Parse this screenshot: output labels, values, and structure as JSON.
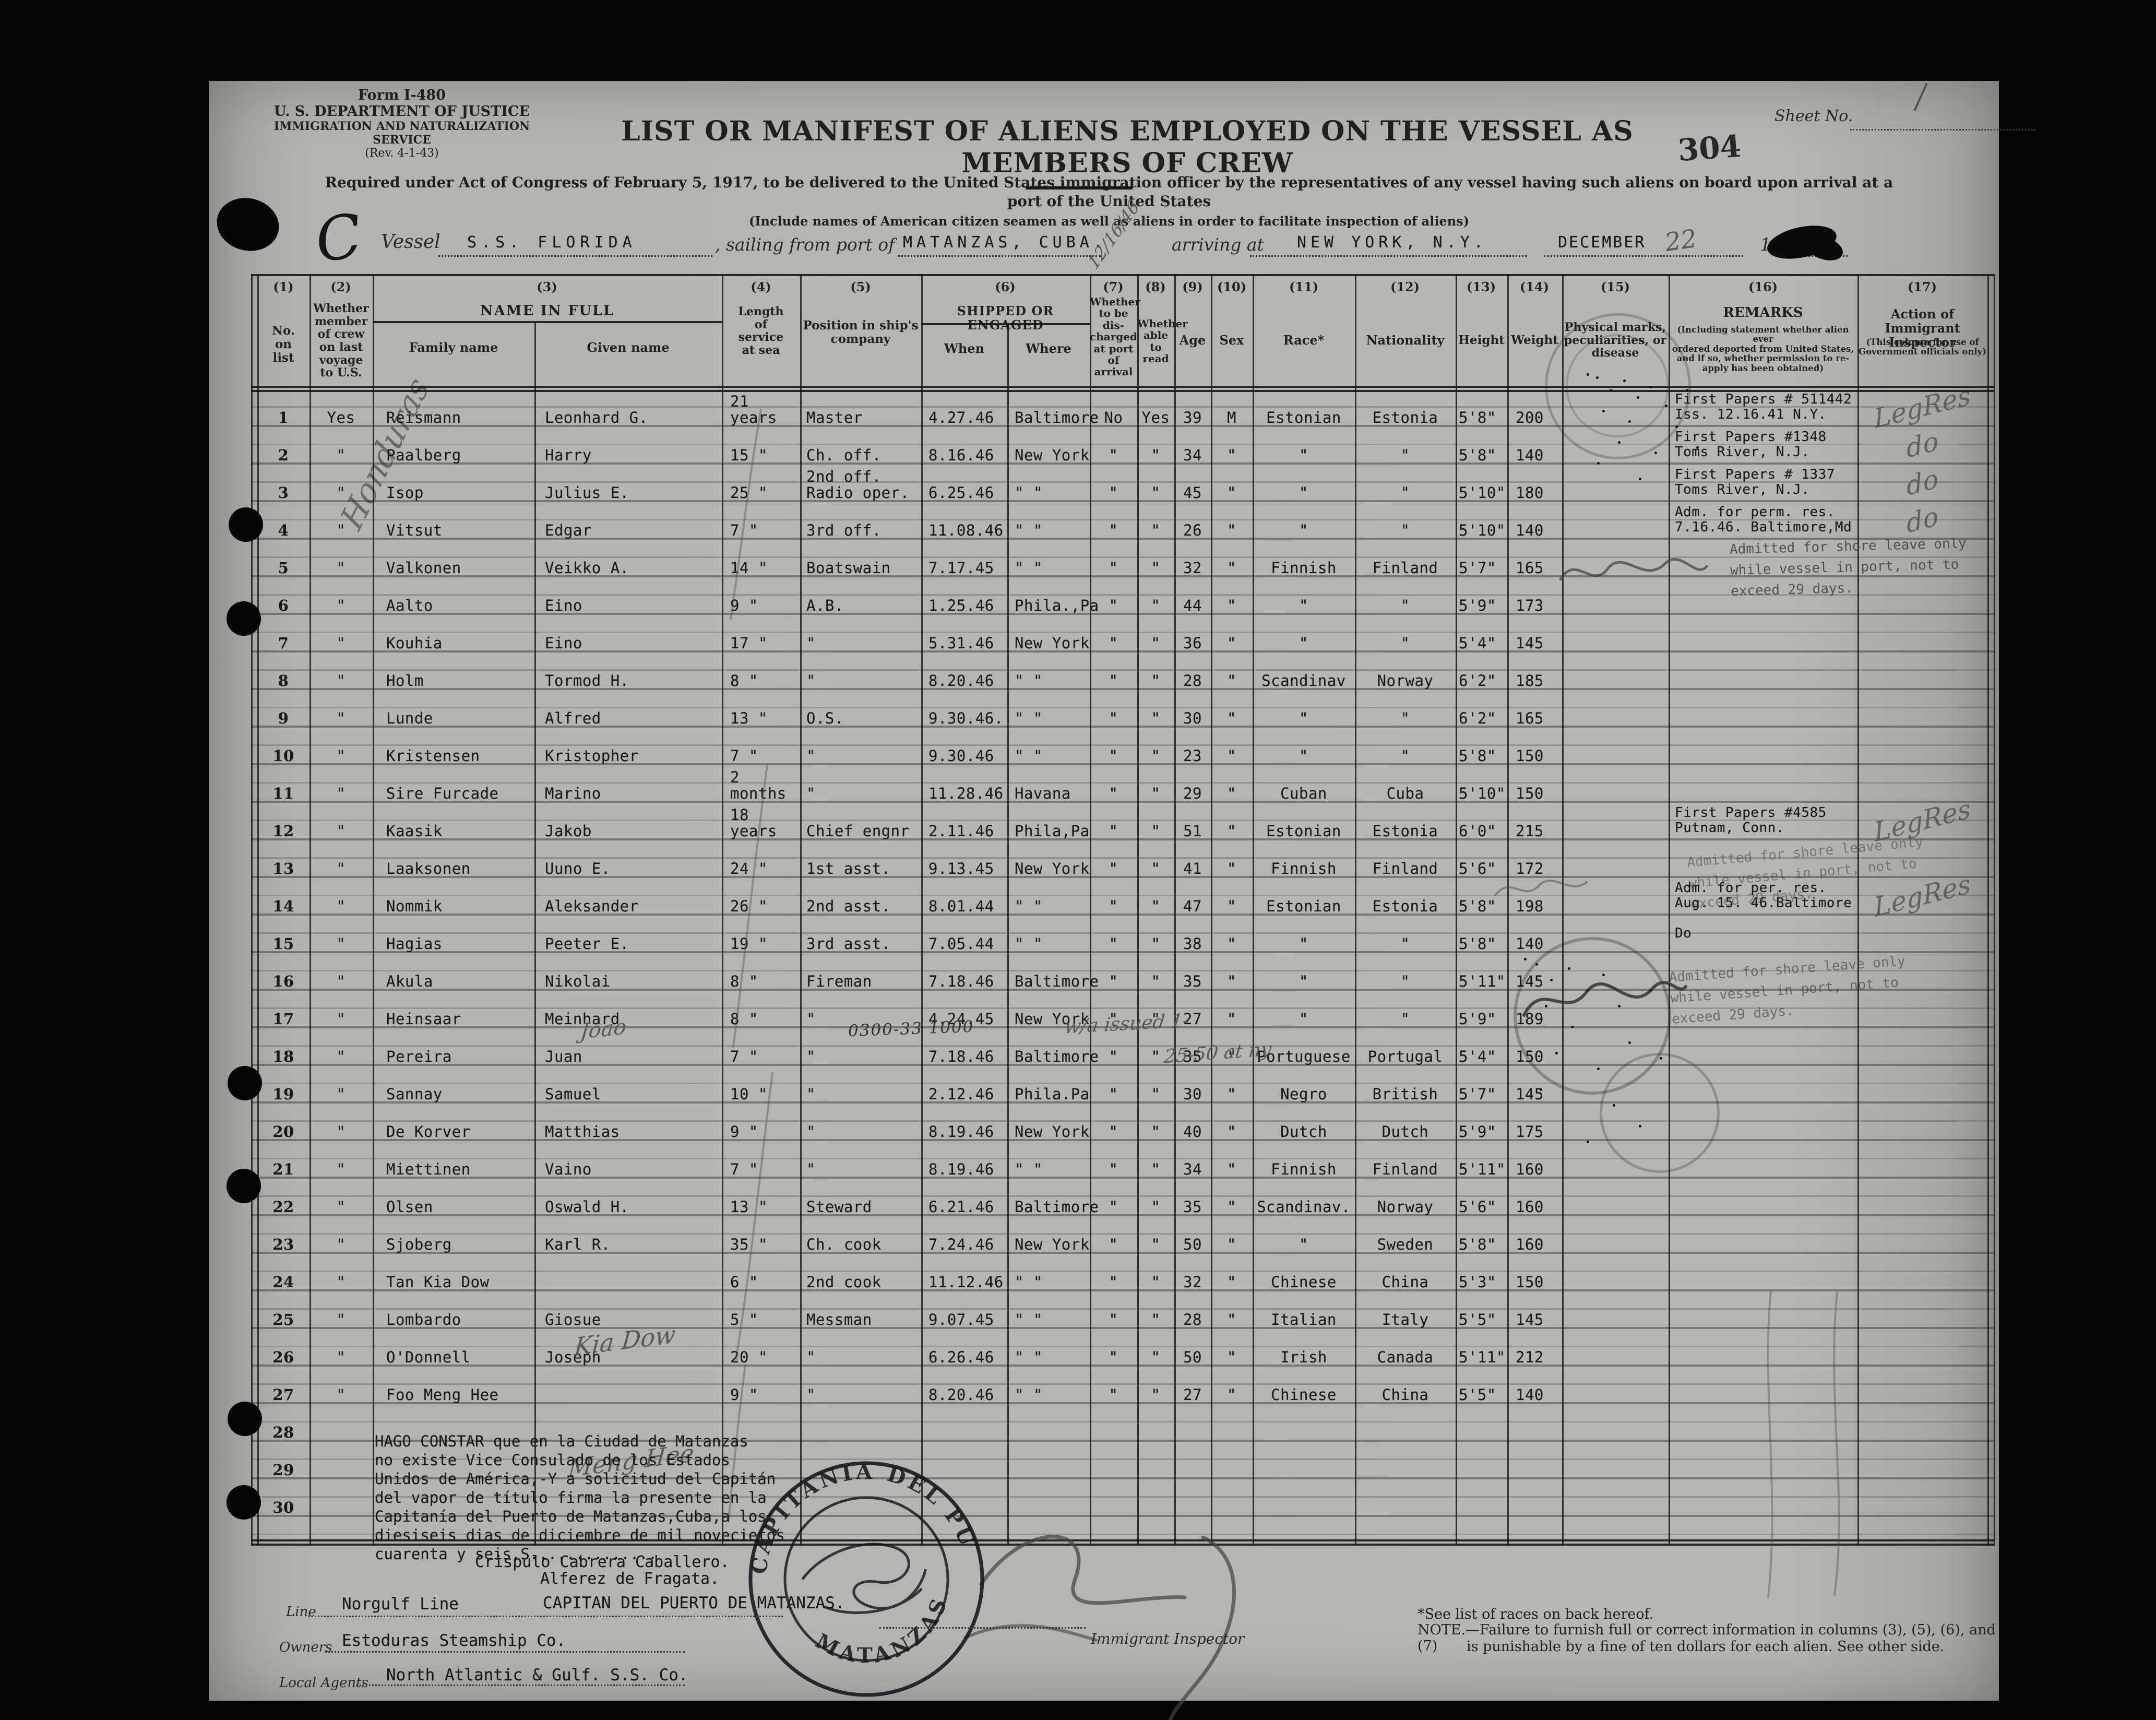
{
  "header": {
    "form_number": "Form I-480",
    "agency_line1": "U. S. DEPARTMENT OF JUSTICE",
    "agency_line2": "IMMIGRATION AND NATURALIZATION SERVICE",
    "revision": "(Rev. 4-1-43)",
    "title": "LIST OR MANIFEST OF ALIENS EMPLOYED ON THE VESSEL AS MEMBERS OF CREW",
    "sheet_no_label": "Sheet No.",
    "page_stamp": "304",
    "subtitle_line1": "Required under Act of Congress of February 5, 1917, to be delivered to the United States immigration officer by the representatives of any vessel having such aliens on board upon arrival at a",
    "subtitle_line2": "port of the United States",
    "include_note": "(Include names of American citizen seamen as well as aliens in order to facilitate inspection of aliens)",
    "vessel_label": "Vessel",
    "vessel_name": "S.S. FLORIDA",
    "sailing_label": ", sailing from port of",
    "sailing_port": "MATANZAS, CUBA.",
    "arriving_label": "arriving at",
    "arrival_port": "NEW YORK, N.Y.",
    "arrival_month": "DECEMBER",
    "year_prefix": "19"
  },
  "handwriting": {
    "classification_letter": "C",
    "margin_note": "Honduras",
    "sailing_date": "12/16/46",
    "arrival_day": "22",
    "row18_number": "0300-33 1000",
    "row18_note1": "w/a issued 1-",
    "row18_note2": "25-50 at ny",
    "joao": "Joao",
    "kia_dow": "Kia Dow",
    "meng_hee": "Meng Hee"
  },
  "stamps": {
    "shore_leave": "Admitted for shore leave only\nwhile vessel in port, not to\nexceed 29 days.",
    "port_stamp_top": "CAPITANIA DEL PUERTO",
    "port_stamp_bottom": "MATANZAS"
  },
  "table": {
    "column_numbers": [
      "(1)",
      "(2)",
      "(3)",
      "(4)",
      "(5)",
      "(6)",
      "(7)",
      "(8)",
      "(9)",
      "(10)",
      "(11)",
      "(12)",
      "(13)",
      "(14)",
      "(15)",
      "(16)",
      "(17)"
    ],
    "headers": {
      "no": "No.\non\nlist",
      "member": "Whether\nmember\nof crew\non last\nvoyage\nto U.S.",
      "name": "NAME IN FULL",
      "family": "Family name",
      "given": "Given name",
      "service": "Length\nof\nservice\nat sea",
      "position": "Position in ship's\ncompany",
      "shipped": "SHIPPED OR ENGAGED",
      "when": "When",
      "where": "Where",
      "discharged": "Whether\nto be\ndis-\ncharged\nat port of\narrival",
      "read": "Whether\nable to\nread",
      "age": "Age",
      "sex": "Sex",
      "race": "Race*",
      "nationality": "Nationality",
      "height": "Height",
      "weight": "Weight",
      "marks": "Physical marks,\npeculiarities, or\ndisease",
      "remarks": "REMARKS",
      "remarks_sub": "(Including statement whether alien ever\nordered deported from United States,\nand if so, whether permission to re-\napply has been obtained)",
      "action": "Action of Immigrant\nInspector",
      "action_sub": "(This column for use of\nGovernment officials only)"
    },
    "rows": [
      {
        "no": "1",
        "member": "Yes",
        "family": "Reismann",
        "given": "Leonhard G.",
        "service": "21 years",
        "position": "Master",
        "when": "4.27.46",
        "where": "Baltimore",
        "discharged": "No",
        "read": "Yes",
        "age": "39",
        "sex": "M",
        "race": "Estonian",
        "nationality": "Estonia",
        "height": "5'8\"",
        "weight": "200",
        "remarks": "First Papers # 511442\nIss. 12.16.41 N.Y.",
        "action": "LegRes"
      },
      {
        "no": "2",
        "member": "\"",
        "family": "Paalberg",
        "given": "Harry",
        "service": "15  \"",
        "position": "Ch. off.",
        "when": "8.16.46",
        "where": "New York",
        "discharged": "\"",
        "read": "\"",
        "age": "34",
        "sex": "\"",
        "race": "\"",
        "nationality": "\"",
        "height": "5'8\"",
        "weight": "140",
        "remarks": "First Papers #1348\nToms River, N.J.",
        "action": "do"
      },
      {
        "no": "3",
        "member": "\"",
        "family": "Isop",
        "given": "Julius E.",
        "service": "25  \"",
        "position": "2nd off.\nRadio oper.",
        "when": "6.25.46",
        "where": "\"  \"",
        "discharged": "\"",
        "read": "\"",
        "age": "45",
        "sex": "\"",
        "race": "\"",
        "nationality": "\"",
        "height": "5'10\"",
        "weight": "180",
        "remarks": "First Papers # 1337\nToms River, N.J.",
        "action": "do"
      },
      {
        "no": "4",
        "member": "\"",
        "family": "Vitsut",
        "given": "Edgar",
        "service": "7  \"",
        "position": "3rd off.",
        "when": "11.08.46",
        "where": "\"  \"",
        "discharged": "\"",
        "read": "\"",
        "age": "26",
        "sex": "\"",
        "race": "\"",
        "nationality": "\"",
        "height": "5'10\"",
        "weight": "140",
        "remarks": "Adm. for perm. res.\n7.16.46. Baltimore,Md",
        "action": "do"
      },
      {
        "no": "5",
        "member": "\"",
        "family": "Valkonen",
        "given": "Veikko  A.",
        "service": "14  \"",
        "position": "Boatswain",
        "when": "7.17.45",
        "where": "\"  \"",
        "discharged": "\"",
        "read": "\"",
        "age": "32",
        "sex": "\"",
        "race": "Finnish",
        "nationality": "Finland",
        "height": "5'7\"",
        "weight": "165"
      },
      {
        "no": "6",
        "member": "\"",
        "family": "Aalto",
        "given": "Eino",
        "service": "9  \"",
        "position": "A.B.",
        "when": "1.25.46",
        "where": "Phila.,Pa",
        "discharged": "\"",
        "read": "\"",
        "age": "44",
        "sex": "\"",
        "race": "\"",
        "nationality": "\"",
        "height": "5'9\"",
        "weight": "173"
      },
      {
        "no": "7",
        "member": "\"",
        "family": "Kouhia",
        "given": "Eino",
        "service": "17  \"",
        "position": "\"",
        "when": "5.31.46",
        "where": "New York",
        "discharged": "\"",
        "read": "\"",
        "age": "36",
        "sex": "\"",
        "race": "\"",
        "nationality": "\"",
        "height": "5'4\"",
        "weight": "145"
      },
      {
        "no": "8",
        "member": "\"",
        "family": "Holm",
        "given": "Tormod H.",
        "service": "8  \"",
        "position": "\"",
        "when": "8.20.46",
        "where": "\"  \"",
        "discharged": "\"",
        "read": "\"",
        "age": "28",
        "sex": "\"",
        "race": "Scandinav",
        "nationality": "Norway",
        "height": "6'2\"",
        "weight": "185"
      },
      {
        "no": "9",
        "member": "\"",
        "family": "Lunde",
        "given": "Alfred",
        "service": "13  \"",
        "position": "O.S.",
        "when": "9.30.46.",
        "where": "\"  \"",
        "discharged": "\"",
        "read": "\"",
        "age": "30",
        "sex": "\"",
        "race": "\"",
        "nationality": "\"",
        "height": "6'2\"",
        "weight": "165"
      },
      {
        "no": "10",
        "member": "\"",
        "family": "Kristensen",
        "given": "Kristopher",
        "service": "7  \"",
        "position": "\"",
        "when": "9.30.46",
        "where": "\"  \"",
        "discharged": "\"",
        "read": "\"",
        "age": "23",
        "sex": "\"",
        "race": "\"",
        "nationality": "\"",
        "height": "5'8\"",
        "weight": "150"
      },
      {
        "no": "11",
        "member": "\"",
        "family": "Sire Furcade",
        "given": "Marino",
        "service": "2 months",
        "position": "\"",
        "when": "11.28.46",
        "where": "Havana",
        "discharged": "\"",
        "read": "\"",
        "age": "29",
        "sex": "\"",
        "race": "Cuban",
        "nationality": "Cuba",
        "height": "5'10\"",
        "weight": "150"
      },
      {
        "no": "12",
        "member": "\"",
        "family": "Kaasik",
        "given": "Jakob",
        "service": "18 years",
        "position": "Chief engnr",
        "when": "2.11.46",
        "where": "Phila,Pa",
        "discharged": "\"",
        "read": "\"",
        "age": "51",
        "sex": "\"",
        "race": "Estonian",
        "nationality": "Estonia",
        "height": "6'0\"",
        "weight": "215",
        "remarks": "First Papers #4585\nPutnam, Conn.",
        "action": "LegRes"
      },
      {
        "no": "13",
        "member": "\"",
        "family": "Laaksonen",
        "given": "Uuno E.",
        "service": "24  \"",
        "position": "1st asst.",
        "when": "9.13.45",
        "where": "New York",
        "discharged": "\"",
        "read": "\"",
        "age": "41",
        "sex": "\"",
        "race": "Finnish",
        "nationality": "Finland",
        "height": "5'6\"",
        "weight": "172"
      },
      {
        "no": "14",
        "member": "\"",
        "family": "Nommik",
        "given": "Aleksander",
        "service": "26  \"",
        "position": "2nd asst.",
        "when": "8.01.44",
        "where": "\"  \"",
        "discharged": "\"",
        "read": "\"",
        "age": "47",
        "sex": "\"",
        "race": "Estonian",
        "nationality": "Estonia",
        "height": "5'8\"",
        "weight": "198",
        "remarks": "Adm. for per. res.\nAug. 15. 46.Baltimore",
        "action": "LegRes"
      },
      {
        "no": "15",
        "member": "\"",
        "family": "Hagias",
        "given": "Peeter E.",
        "service": "19  \"",
        "position": "3rd  asst.",
        "when": "7.05.44",
        "where": "\"  \"",
        "discharged": "\"",
        "read": "\"",
        "age": "38",
        "sex": "\"",
        "race": "\"",
        "nationality": "\"",
        "height": "5'8\"",
        "weight": "140",
        "remarks": "Do"
      },
      {
        "no": "16",
        "member": "\"",
        "family": "Akula",
        "given": "Nikolai",
        "service": "8  \"",
        "position": "Fireman",
        "when": "7.18.46",
        "where": "Baltimore",
        "discharged": "\"",
        "read": "\"",
        "age": "35",
        "sex": "\"",
        "race": "\"",
        "nationality": "\"",
        "height": "5'11\"",
        "weight": "145"
      },
      {
        "no": "17",
        "member": "\"",
        "family": "Heinsaar",
        "given": "Meinhard",
        "service": "8  \"",
        "position": "\"",
        "when": "4.24.45",
        "where": "New York",
        "discharged": "\"",
        "read": "\"",
        "age": "27",
        "sex": "\"",
        "race": "\"",
        "nationality": "\"",
        "height": "5'9\"",
        "weight": "189"
      },
      {
        "no": "18",
        "member": "\"",
        "family": "Pereira",
        "given": "Juan",
        "service": "7  \"",
        "position": "\"",
        "when": "7.18.46",
        "where": "Baltimore",
        "discharged": "\"",
        "read": "\"",
        "age": "35",
        "sex": "\"",
        "race": "Portuguese",
        "nationality": "Portugal",
        "height": "5'4\"",
        "weight": "150"
      },
      {
        "no": "19",
        "member": "\"",
        "family": "Sannay",
        "given": "Samuel",
        "service": "10  \"",
        "position": "\"",
        "when": "2.12.46",
        "where": "Phila.Pa",
        "discharged": "\"",
        "read": "\"",
        "age": "30",
        "sex": "\"",
        "race": "Negro",
        "nationality": "British",
        "height": "5'7\"",
        "weight": "145"
      },
      {
        "no": "20",
        "member": "\"",
        "family": "De Korver",
        "given": "Matthias",
        "service": "9  \"",
        "position": "\"",
        "when": "8.19.46",
        "where": "New York",
        "discharged": "\"",
        "read": "\"",
        "age": "40",
        "sex": "\"",
        "race": "Dutch",
        "nationality": "Dutch",
        "height": "5'9\"",
        "weight": "175"
      },
      {
        "no": "21",
        "member": "\"",
        "family": "Miettinen",
        "given": "Vaino",
        "service": "7  \"",
        "position": "\"",
        "when": "8.19.46",
        "where": "\"  \"",
        "discharged": "\"",
        "read": "\"",
        "age": "34",
        "sex": "\"",
        "race": "Finnish",
        "nationality": "Finland",
        "height": "5'11\"",
        "weight": "160"
      },
      {
        "no": "22",
        "member": "\"",
        "family": "Olsen",
        "given": "Oswald H.",
        "service": "13  \"",
        "position": "Steward",
        "when": "6.21.46",
        "where": "Baltimore",
        "discharged": "\"",
        "read": "\"",
        "age": "35",
        "sex": "\"",
        "race": "Scandinav.",
        "nationality": "Norway",
        "height": "5'6\"",
        "weight": "160"
      },
      {
        "no": "23",
        "member": "\"",
        "family": "Sjoberg",
        "given": "Karl  R.",
        "service": "35  \"",
        "position": "Ch. cook",
        "when": "7.24.46",
        "where": "New York",
        "discharged": "\"",
        "read": "\"",
        "age": "50",
        "sex": "\"",
        "race": "\"",
        "nationality": "Sweden",
        "height": "5'8\"",
        "weight": "160"
      },
      {
        "no": "24",
        "member": "\"",
        "family": "Tan Kia Dow",
        "service": "6  \"",
        "position": "2nd cook",
        "when": "11.12.46",
        "where": "\"  \"",
        "discharged": "\"",
        "read": "\"",
        "age": "32",
        "sex": "\"",
        "race": "Chinese",
        "nationality": "China",
        "height": "5'3\"",
        "weight": "150"
      },
      {
        "no": "25",
        "member": "\"",
        "family": "Lombardo",
        "given": "Giosue",
        "service": "5  \"",
        "position": "Messman",
        "when": "9.07.45",
        "where": "\"  \"",
        "discharged": "\"",
        "read": "\"",
        "age": "28",
        "sex": "\"",
        "race": "Italian",
        "nationality": "Italy",
        "height": "5'5\"",
        "weight": "145"
      },
      {
        "no": "26",
        "member": "\"",
        "family": "O'Donnell",
        "given": "Joseph",
        "service": "20  \"",
        "position": "\"",
        "when": "6.26.46",
        "where": "\"  \"",
        "discharged": "\"",
        "read": "\"",
        "age": "50",
        "sex": "\"",
        "race": "Irish",
        "nationality": "Canada",
        "height": "5'11\"",
        "weight": "212"
      },
      {
        "no": "27",
        "member": "\"",
        "family": "Foo Meng Hee",
        "service": "9  \"",
        "position": "\"",
        "when": "8.20.46",
        "where": "\"  \"",
        "discharged": "\"",
        "read": "\"",
        "age": "27",
        "sex": "\"",
        "race": "Chinese",
        "nationality": "China",
        "height": "5'5\"",
        "weight": "140"
      },
      {
        "no": "28"
      },
      {
        "no": "29"
      },
      {
        "no": "30"
      }
    ]
  },
  "footer": {
    "signature_name": "Crispulo Cabrera Caballero.",
    "signature_title": "Alferez de Fragata.",
    "captain_line": "CAPITAN DEL PUERTO DE MATANZAS.",
    "line_label": "Line",
    "line_value": "Norgulf Line",
    "owners_label": "Owners",
    "owners_value": "Estoduras Steamship Co.",
    "agents_label": "Local Agents",
    "agents_value": "North  Atlantic & Gulf. S.S. Co.",
    "inspector_label": "Immigrant Inspector",
    "note1": "*See list of races on back hereof.",
    "note2": "NOTE.—Failure to furnish full or correct information in columns (3), (5), (6), and (7)",
    "note3": "is punishable by a fine of ten dollars for each alien.   See other side.",
    "spanish_statement": "HAGO CONSTAR que en la Ciudad de Matanzas\nno existe Vice Consulado de los Estados\nUnidos de América,-Y a solicitud del Capitán\ndel vapor de título firma la presente en la\nCapitanía del Puerto de Matanzas,Cuba,a los\ndiesiseis dias de diciembre de mil novecietos\ncuarenta y seis.S.............."
  }
}
